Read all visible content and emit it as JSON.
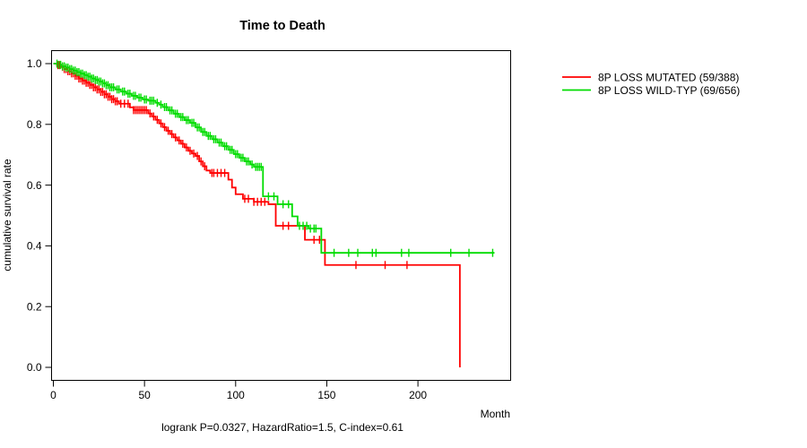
{
  "chart_data": {
    "type": "line",
    "subtype": "kaplan-meier-step",
    "title": "Time to Death",
    "xlabel": "Month",
    "ylabel": "cumulative survival rate",
    "xlim": [
      0,
      251
    ],
    "ylim": [
      0.0,
      1.0
    ],
    "x_ticks": [
      "0",
      "50",
      "100",
      "150",
      "200"
    ],
    "y_ticks": [
      "1.0",
      "0.8",
      "0.6",
      "0.4",
      "0.2",
      "0.0"
    ],
    "grid": false,
    "legend_position": "right-outside",
    "annotation": "logrank P=0.0327, HazardRatio=1.5, C-index=0.61",
    "axis_color": "#000000",
    "series": [
      {
        "name": "8P LOSS MUTATED (59/388)",
        "color": "#FF0000",
        "events": 59,
        "n": 388,
        "steps": [
          [
            0,
            1.0
          ],
          [
            2,
            0.995
          ],
          [
            4,
            0.989
          ],
          [
            6,
            0.982
          ],
          [
            8,
            0.975
          ],
          [
            10,
            0.968
          ],
          [
            12,
            0.96
          ],
          [
            14,
            0.951
          ],
          [
            16,
            0.944
          ],
          [
            18,
            0.937
          ],
          [
            20,
            0.93
          ],
          [
            22,
            0.922
          ],
          [
            24,
            0.915
          ],
          [
            26,
            0.907
          ],
          [
            28,
            0.899
          ],
          [
            30,
            0.891
          ],
          [
            32,
            0.883
          ],
          [
            34,
            0.876
          ],
          [
            36,
            0.868
          ],
          [
            42,
            0.856
          ],
          [
            44,
            0.847
          ],
          [
            52,
            0.836
          ],
          [
            54,
            0.826
          ],
          [
            56,
            0.815
          ],
          [
            58,
            0.803
          ],
          [
            60,
            0.791
          ],
          [
            62,
            0.779
          ],
          [
            64,
            0.768
          ],
          [
            66,
            0.757
          ],
          [
            68,
            0.747
          ],
          [
            70,
            0.736
          ],
          [
            72,
            0.724
          ],
          [
            74,
            0.713
          ],
          [
            76,
            0.704
          ],
          [
            78,
            0.696
          ],
          [
            80,
            0.678
          ],
          [
            82,
            0.662
          ],
          [
            84,
            0.648
          ],
          [
            86,
            0.64
          ],
          [
            96,
            0.618
          ],
          [
            98,
            0.592
          ],
          [
            100,
            0.57
          ],
          [
            104,
            0.555
          ],
          [
            110,
            0.545
          ],
          [
            118,
            0.537
          ],
          [
            122,
            0.466
          ],
          [
            138,
            0.42
          ],
          [
            149,
            0.337
          ],
          [
            223,
            0.0
          ]
        ],
        "censor_months": [
          2.5,
          3.5,
          5,
          6,
          7,
          8,
          9,
          10,
          11,
          12,
          13,
          14,
          15,
          16,
          17,
          18,
          19,
          20,
          21,
          22,
          23,
          24,
          25,
          26,
          27,
          28,
          29,
          30,
          31,
          32,
          33,
          34,
          35,
          37,
          39,
          41,
          44,
          45,
          46,
          47,
          48,
          49,
          50,
          51,
          53,
          55,
          57,
          59,
          61,
          63,
          65,
          67,
          69,
          71,
          73,
          75,
          77,
          79,
          81,
          83,
          87,
          88,
          90,
          92,
          94,
          105,
          107,
          110,
          112,
          114,
          116,
          126,
          129,
          143,
          146,
          166,
          182,
          194
        ]
      },
      {
        "name": "8P LOSS WILD-TYP (69/656)",
        "color": "#00DC00",
        "events": 69,
        "n": 656,
        "steps": [
          [
            0,
            1.0
          ],
          [
            3,
            0.996
          ],
          [
            5,
            0.991
          ],
          [
            7,
            0.987
          ],
          [
            9,
            0.982
          ],
          [
            11,
            0.977
          ],
          [
            13,
            0.972
          ],
          [
            15,
            0.967
          ],
          [
            17,
            0.962
          ],
          [
            19,
            0.957
          ],
          [
            21,
            0.951
          ],
          [
            23,
            0.946
          ],
          [
            25,
            0.941
          ],
          [
            27,
            0.935
          ],
          [
            29,
            0.929
          ],
          [
            31,
            0.922
          ],
          [
            34,
            0.915
          ],
          [
            37,
            0.908
          ],
          [
            40,
            0.901
          ],
          [
            43,
            0.894
          ],
          [
            46,
            0.888
          ],
          [
            49,
            0.882
          ],
          [
            52,
            0.878
          ],
          [
            56,
            0.871
          ],
          [
            58,
            0.865
          ],
          [
            60,
            0.857
          ],
          [
            63,
            0.846
          ],
          [
            66,
            0.835
          ],
          [
            69,
            0.824
          ],
          [
            72,
            0.814
          ],
          [
            75,
            0.805
          ],
          [
            78,
            0.79
          ],
          [
            81,
            0.775
          ],
          [
            84,
            0.762
          ],
          [
            87,
            0.751
          ],
          [
            90,
            0.74
          ],
          [
            93,
            0.728
          ],
          [
            96,
            0.716
          ],
          [
            99,
            0.702
          ],
          [
            102,
            0.69
          ],
          [
            105,
            0.678
          ],
          [
            108,
            0.668
          ],
          [
            110,
            0.66
          ],
          [
            115,
            0.563
          ],
          [
            123,
            0.537
          ],
          [
            131,
            0.497
          ],
          [
            134,
            0.466
          ],
          [
            140,
            0.457
          ],
          [
            147,
            0.377
          ],
          [
            242,
            0.377
          ]
        ],
        "censor_months": [
          2,
          3,
          4,
          5,
          6,
          7,
          8,
          9,
          10,
          11,
          12,
          13,
          14,
          15,
          16,
          17,
          18,
          19,
          20,
          21,
          22,
          23,
          24,
          25,
          26,
          27,
          28,
          29,
          30,
          31,
          32,
          33,
          35,
          36,
          38,
          39,
          41,
          42,
          44,
          45,
          47,
          48,
          50,
          51,
          53,
          54,
          55,
          57,
          59,
          61,
          62,
          64,
          65,
          67,
          68,
          70,
          71,
          73,
          74,
          76,
          77,
          79,
          80,
          82,
          83,
          85,
          86,
          88,
          89,
          91,
          92,
          94,
          95,
          97,
          98,
          100,
          101,
          103,
          104,
          106,
          107,
          109,
          111,
          112,
          113,
          114,
          118,
          121,
          126,
          129,
          135,
          137,
          139,
          141,
          143,
          144,
          154,
          162,
          167,
          175,
          177,
          191,
          195,
          218,
          228,
          241
        ]
      }
    ]
  }
}
